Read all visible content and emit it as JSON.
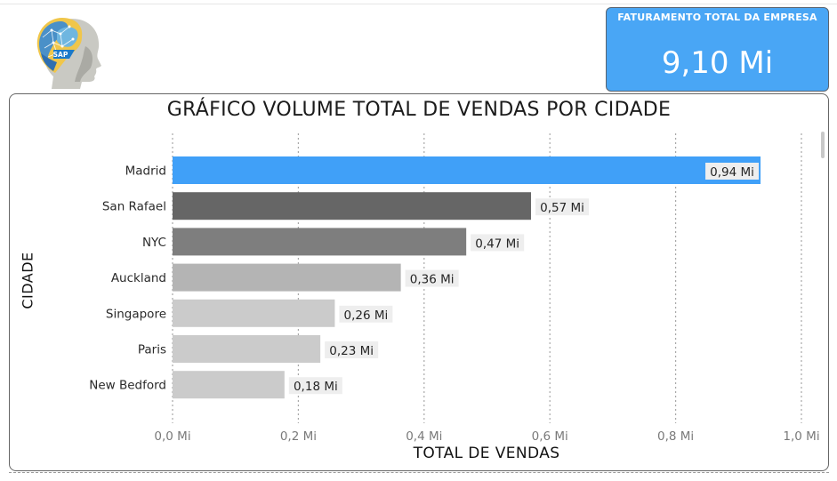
{
  "kpi": {
    "label": "FATURAMENTO TOTAL DA EMPRESA",
    "value": "9,10 Mi"
  },
  "logo": {
    "text": "SAP"
  },
  "chart_data": {
    "type": "bar",
    "orientation": "horizontal",
    "title": "GRÁFICO VOLUME TOTAL DE VENDAS POR CIDADE",
    "xlabel": "TOTAL DE VENDAS",
    "ylabel": "CIDADE",
    "xlim": [
      0,
      1.0
    ],
    "grid": true,
    "xticks": [
      {
        "value": 0.0,
        "label": "0,0 Mi"
      },
      {
        "value": 0.2,
        "label": "0,2 Mi"
      },
      {
        "value": 0.4,
        "label": "0,4 Mi"
      },
      {
        "value": 0.6,
        "label": "0,6 Mi"
      },
      {
        "value": 0.8,
        "label": "0,8 Mi"
      },
      {
        "value": 1.0,
        "label": "1,0 Mi"
      }
    ],
    "categories": [
      "Madrid",
      "San Rafael",
      "NYC",
      "Auckland",
      "Singapore",
      "Paris",
      "New Bedford"
    ],
    "values": [
      0.935,
      0.57,
      0.467,
      0.363,
      0.258,
      0.235,
      0.178
    ],
    "data_labels": [
      "0,94 Mi",
      "0,57 Mi",
      "0,47 Mi",
      "0,36 Mi",
      "0,26 Mi",
      "0,23 Mi",
      "0,18 Mi"
    ],
    "colors": [
      "#40a0f8",
      "#666666",
      "#7e7e7e",
      "#b4b4b4",
      "#cbcbcb",
      "#cbcbcb",
      "#cbcbcb"
    ],
    "label_bg": "#eeeeee"
  }
}
